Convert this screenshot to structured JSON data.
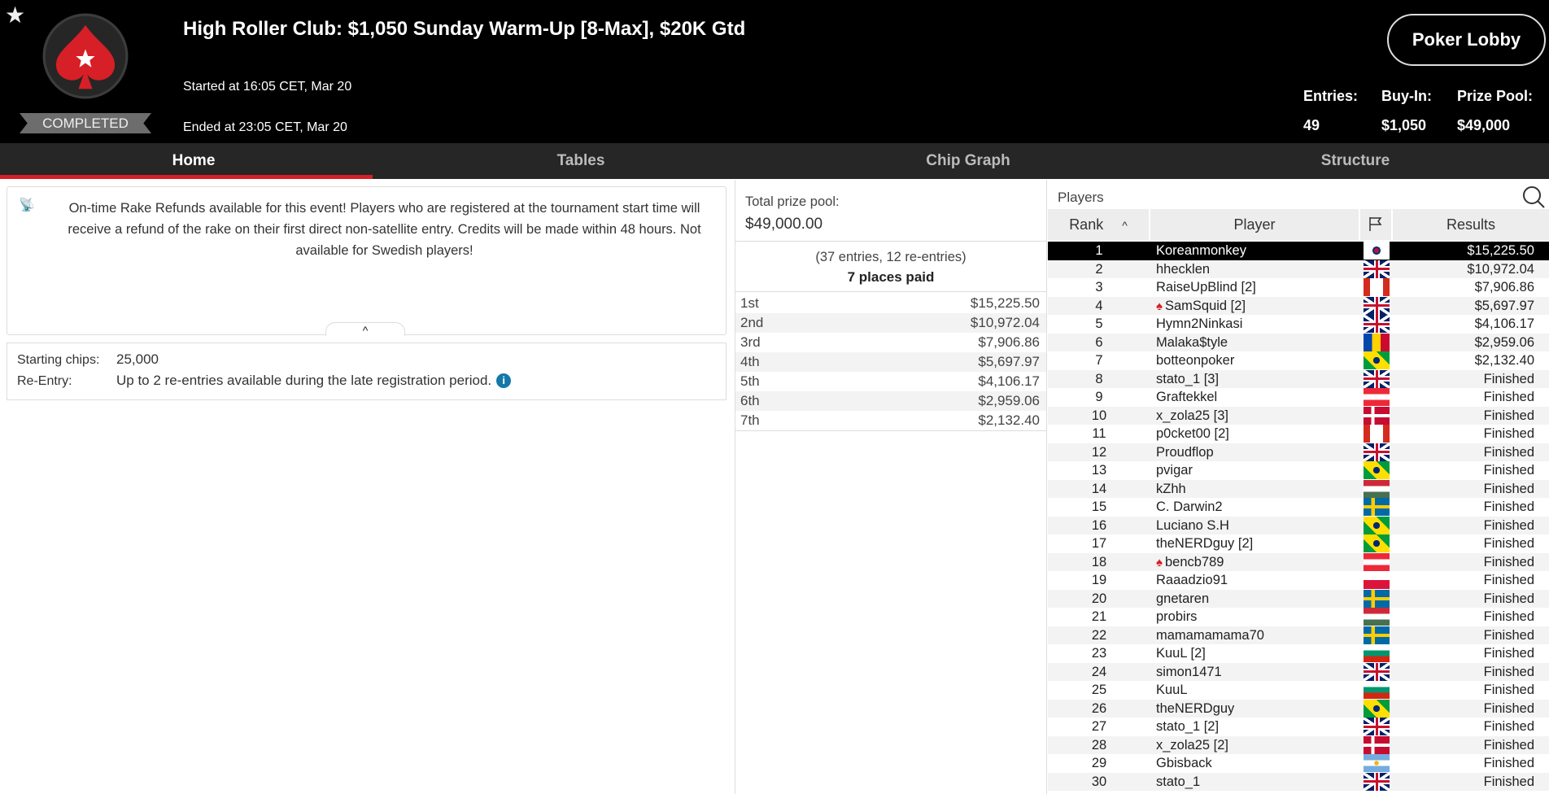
{
  "header": {
    "title": "High Roller Club: $1,050 Sunday Warm-Up [8-Max], $20K Gtd",
    "started": "Started at 16:05 CET, Mar 20",
    "ended": "Ended at 23:05 CET, Mar 20",
    "status": "COMPLETED",
    "lobby_button": "Poker Lobby",
    "stats": [
      {
        "label": "Entries:",
        "value": "49"
      },
      {
        "label": "Buy-In:",
        "value": "$1,050"
      },
      {
        "label": "Prize Pool:",
        "value": "$49,000"
      }
    ]
  },
  "tabs": [
    {
      "label": "Home",
      "active": true
    },
    {
      "label": "Tables"
    },
    {
      "label": "Chip Graph"
    },
    {
      "label": "Structure"
    }
  ],
  "notice": "On-time Rake Refunds available for this event! Players who are registered at the tournament start time will receive a refund of the rake on their first direct non-satellite entry. Credits will be made within 48 hours. Not available for Swedish players!",
  "info": {
    "starting_chips_label": "Starting chips:",
    "starting_chips": "25,000",
    "reentry_label": "Re-Entry:",
    "reentry": "Up to 2 re-entries available during the late registration period."
  },
  "prize": {
    "total_label": "Total prize pool:",
    "total": "$49,000.00",
    "entries": "(37 entries, 12 re-entries)",
    "places_paid": "7 places paid",
    "payouts": [
      [
        "1st",
        "$15,225.50"
      ],
      [
        "2nd",
        "$10,972.04"
      ],
      [
        "3rd",
        "$7,906.86"
      ],
      [
        "4th",
        "$5,697.97"
      ],
      [
        "5th",
        "$4,106.17"
      ],
      [
        "6th",
        "$2,959.06"
      ],
      [
        "7th",
        "$2,132.40"
      ]
    ]
  },
  "players": {
    "label": "Players",
    "columns": {
      "rank": "Rank",
      "player": "Player",
      "results": "Results"
    },
    "rows": [
      {
        "rank": "1",
        "name": "Koreanmonkey",
        "flag": "kr",
        "result": "$15,225.50",
        "selected": true
      },
      {
        "rank": "2",
        "name": "hhecklen",
        "flag": "gb",
        "result": "$10,972.04"
      },
      {
        "rank": "3",
        "name": "RaiseUpBlind [2]",
        "flag": "ca",
        "result": "$7,906.86"
      },
      {
        "rank": "4",
        "name": "SamSquid [2]",
        "flag": "gb",
        "result": "$5,697.97",
        "pro": true
      },
      {
        "rank": "5",
        "name": "Hymn2Ninkasi",
        "flag": "gb",
        "result": "$4,106.17"
      },
      {
        "rank": "6",
        "name": "Malaka$tyle",
        "flag": "md",
        "result": "$2,959.06"
      },
      {
        "rank": "7",
        "name": "botteonpoker",
        "flag": "br",
        "result": "$2,132.40"
      },
      {
        "rank": "8",
        "name": "stato_1 [3]",
        "flag": "gb",
        "result": "Finished"
      },
      {
        "rank": "9",
        "name": "Graftekkel",
        "flag": "at",
        "result": "Finished"
      },
      {
        "rank": "10",
        "name": "x_zola25 [3]",
        "flag": "dk",
        "result": "Finished"
      },
      {
        "rank": "11",
        "name": "p0cket00 [2]",
        "flag": "ca",
        "result": "Finished"
      },
      {
        "rank": "12",
        "name": "Proudflop",
        "flag": "gb",
        "result": "Finished"
      },
      {
        "rank": "13",
        "name": "pvigar",
        "flag": "br",
        "result": "Finished"
      },
      {
        "rank": "14",
        "name": "kZhh",
        "flag": "hu",
        "result": "Finished"
      },
      {
        "rank": "15",
        "name": "C. Darwin2",
        "flag": "se",
        "result": "Finished"
      },
      {
        "rank": "16",
        "name": "Luciano S.H",
        "flag": "br",
        "result": "Finished"
      },
      {
        "rank": "17",
        "name": "theNERDguy [2]",
        "flag": "br",
        "result": "Finished"
      },
      {
        "rank": "18",
        "name": "bencb789",
        "flag": "at",
        "result": "Finished",
        "pro": true
      },
      {
        "rank": "19",
        "name": "Raaadzio91",
        "flag": "pl",
        "result": "Finished"
      },
      {
        "rank": "20",
        "name": "gnetaren",
        "flag": "se",
        "result": "Finished"
      },
      {
        "rank": "21",
        "name": "probirs",
        "flag": "hu",
        "result": "Finished"
      },
      {
        "rank": "22",
        "name": "mamamamama70",
        "flag": "se",
        "result": "Finished"
      },
      {
        "rank": "23",
        "name": "KuuL [2]",
        "flag": "bg",
        "result": "Finished"
      },
      {
        "rank": "24",
        "name": "simon1471",
        "flag": "gb",
        "result": "Finished"
      },
      {
        "rank": "25",
        "name": "KuuL",
        "flag": "bg",
        "result": "Finished"
      },
      {
        "rank": "26",
        "name": "theNERDguy",
        "flag": "br",
        "result": "Finished"
      },
      {
        "rank": "27",
        "name": "stato_1 [2]",
        "flag": "gb",
        "result": "Finished"
      },
      {
        "rank": "28",
        "name": "x_zola25 [2]",
        "flag": "dk",
        "result": "Finished"
      },
      {
        "rank": "29",
        "name": "Gbisback",
        "flag": "ar",
        "result": "Finished"
      },
      {
        "rank": "30",
        "name": "stato_1",
        "flag": "gb",
        "result": "Finished"
      }
    ]
  },
  "colors": {
    "accent": "#d61f26",
    "header_bg": "#000000",
    "tabbar_bg": "#262626",
    "info_icon": "#1478a8"
  }
}
